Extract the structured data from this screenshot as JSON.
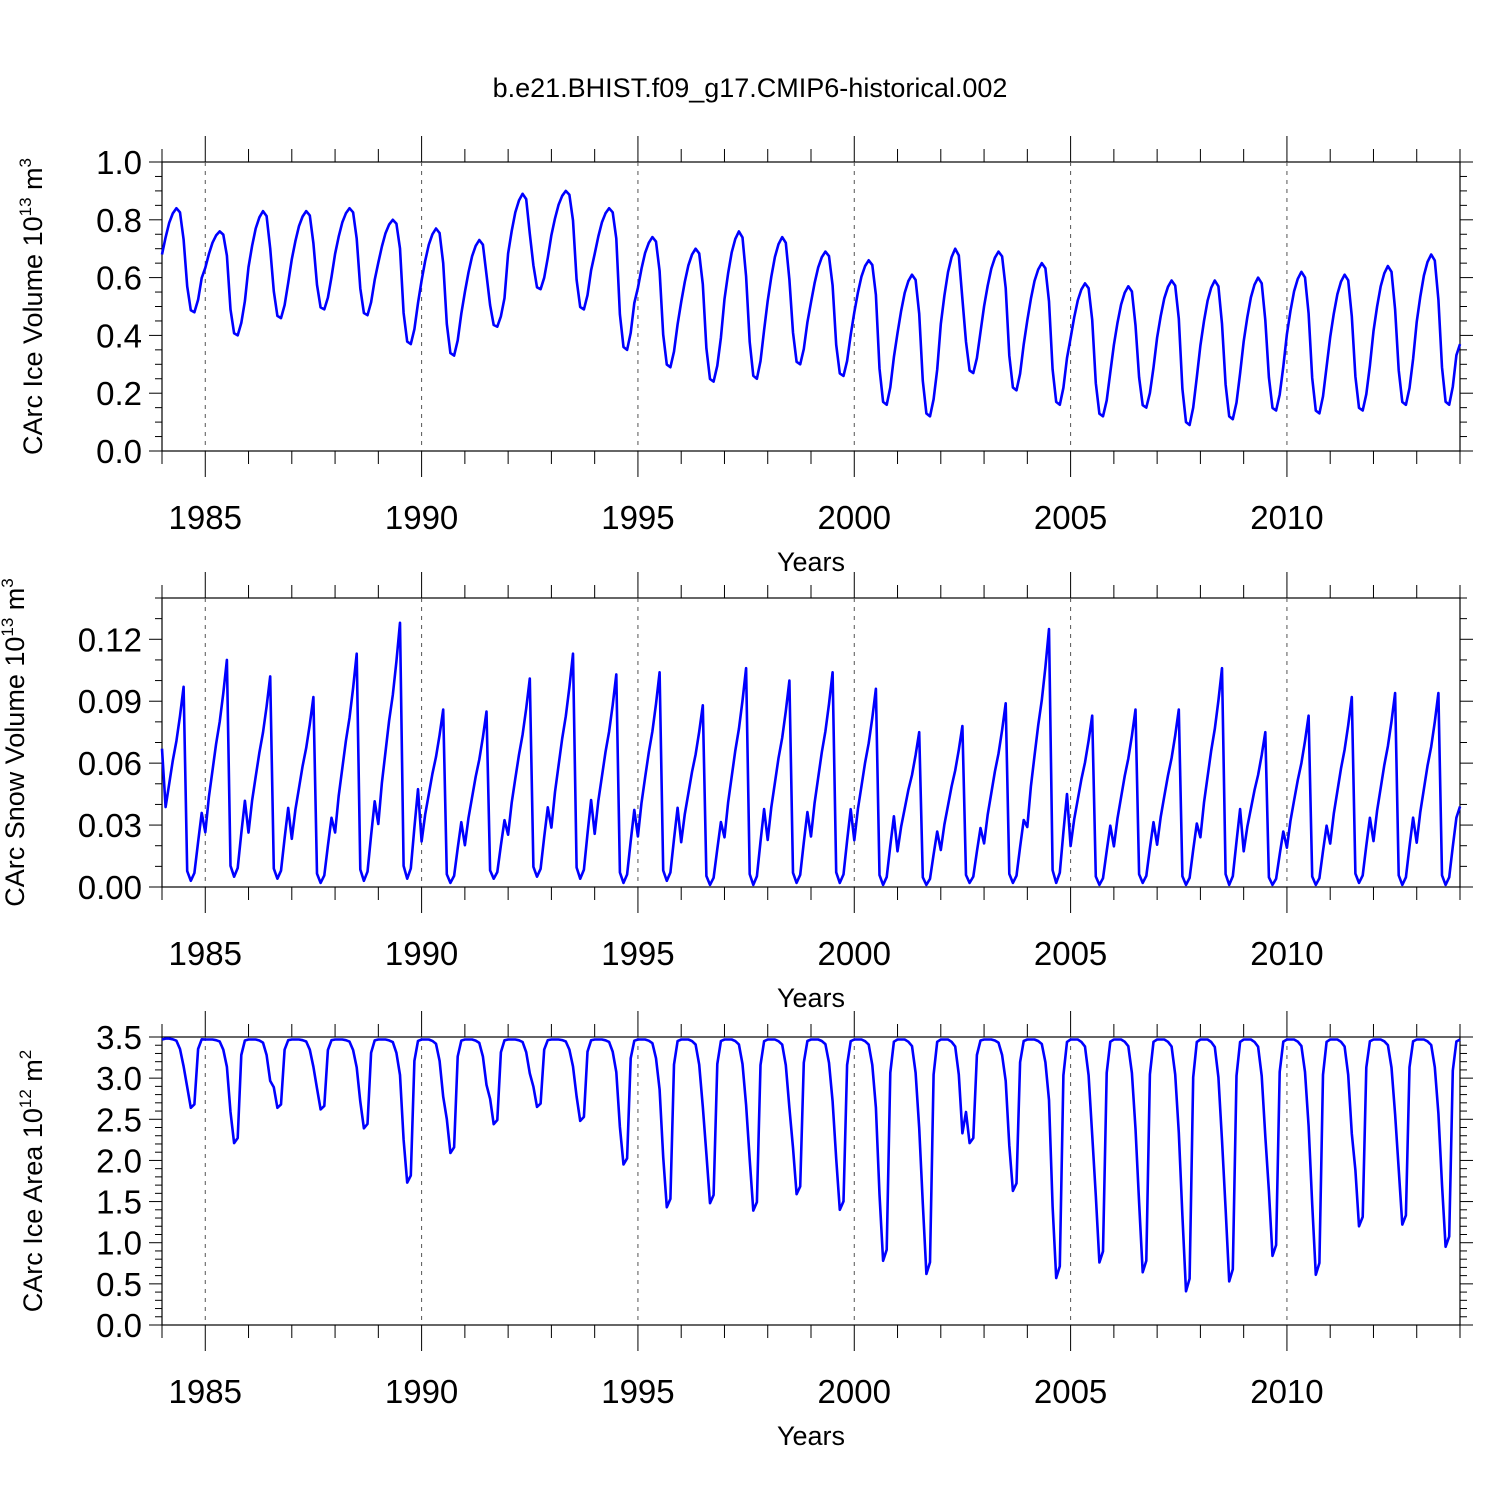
{
  "title": "b.e21.BHIST.f09_g17.CMIP6-historical.002",
  "line_color": "#0000ff",
  "chart_data": [
    {
      "type": "line",
      "ylabel": "CArc Ice Volume 10",
      "ylabel_sup": "13",
      "ylabel_unit": " m",
      "ylabel_unit_sup": "3",
      "xlabel": "Years",
      "xlim": [
        1984.0,
        2014.0
      ],
      "ylim": [
        0.0,
        1.0
      ],
      "yticks": [
        "0.0",
        "0.2",
        "0.4",
        "0.6",
        "0.8",
        "1.0"
      ],
      "yticks_values": [
        0.0,
        0.2,
        0.4,
        0.6,
        0.8,
        1.0
      ],
      "xticks": [
        "1985",
        "1990",
        "1995",
        "2000",
        "2005",
        "2010"
      ],
      "xticks_values": [
        1985,
        1990,
        1995,
        2000,
        2005,
        2010
      ],
      "series": [
        {
          "name": "CArc Ice Volume",
          "annual_max": [
            0.84,
            0.76,
            0.83,
            0.83,
            0.84,
            0.8,
            0.77,
            0.73,
            0.89,
            0.9,
            0.84,
            0.74,
            0.7,
            0.76,
            0.74,
            0.69,
            0.66,
            0.61,
            0.7,
            0.69,
            0.65,
            0.58,
            0.57,
            0.59,
            0.59,
            0.6,
            0.62,
            0.61,
            0.64,
            0.68
          ],
          "annual_min": [
            0.48,
            0.4,
            0.46,
            0.49,
            0.47,
            0.37,
            0.33,
            0.43,
            0.56,
            0.49,
            0.35,
            0.29,
            0.24,
            0.25,
            0.3,
            0.26,
            0.16,
            0.12,
            0.27,
            0.21,
            0.16,
            0.12,
            0.15,
            0.09,
            0.11,
            0.14,
            0.13,
            0.14,
            0.16,
            0.16
          ],
          "start_value": 0.68,
          "end_value": 0.37,
          "sampling": "monthly"
        }
      ]
    },
    {
      "type": "line",
      "ylabel": "CArc Snow Volume 10",
      "ylabel_sup": "13",
      "ylabel_unit": " m",
      "ylabel_unit_sup": "3",
      "xlabel": "Years",
      "xlim": [
        1984.0,
        2014.0
      ],
      "ylim": [
        0.0,
        0.14
      ],
      "yticks": [
        "0.00",
        "0.03",
        "0.06",
        "0.09",
        "0.12"
      ],
      "yticks_values": [
        0.0,
        0.03,
        0.06,
        0.09,
        0.12
      ],
      "xticks": [
        "1985",
        "1990",
        "1995",
        "2000",
        "2005",
        "2010"
      ],
      "xticks_values": [
        1985,
        1990,
        1995,
        2000,
        2005,
        2010
      ],
      "series": [
        {
          "name": "CArc Snow Volume",
          "annual_max": [
            0.097,
            0.11,
            0.102,
            0.092,
            0.113,
            0.128,
            0.086,
            0.085,
            0.101,
            0.113,
            0.103,
            0.104,
            0.088,
            0.106,
            0.1,
            0.104,
            0.096,
            0.075,
            0.078,
            0.089,
            0.125,
            0.083,
            0.086,
            0.086,
            0.106,
            0.075,
            0.083,
            0.092,
            0.094,
            0.094
          ],
          "annual_min": [
            0.003,
            0.005,
            0.004,
            0.002,
            0.003,
            0.004,
            0.002,
            0.004,
            0.005,
            0.004,
            0.002,
            0.003,
            0.001,
            0.001,
            0.002,
            0.002,
            0.001,
            0.001,
            0.002,
            0.002,
            0.002,
            0.001,
            0.002,
            0.001,
            0.001,
            0.001,
            0.001,
            0.002,
            0.001,
            0.001
          ],
          "start_value": 0.067,
          "end_value": 0.039,
          "sampling": "monthly"
        }
      ]
    },
    {
      "type": "line",
      "ylabel": "CArc Ice Area 10",
      "ylabel_sup": "12",
      "ylabel_unit": " m",
      "ylabel_unit_sup": "2",
      "xlabel": "Years",
      "xlim": [
        1984.0,
        2014.0
      ],
      "ylim": [
        0.0,
        3.5
      ],
      "yticks": [
        "0.0",
        "0.5",
        "1.0",
        "1.5",
        "2.0",
        "2.5",
        "3.0",
        "3.5"
      ],
      "yticks_values": [
        0.0,
        0.5,
        1.0,
        1.5,
        2.0,
        2.5,
        3.0,
        3.5
      ],
      "xticks": [
        "1985",
        "1990",
        "1995",
        "2000",
        "2005",
        "2010"
      ],
      "xticks_values": [
        1985,
        1990,
        1995,
        2000,
        2005,
        2010
      ],
      "series": [
        {
          "name": "CArc Ice Area",
          "annual_max": [
            3.48,
            3.47,
            3.47,
            3.47,
            3.47,
            3.47,
            3.47,
            3.47,
            3.47,
            3.47,
            3.47,
            3.47,
            3.47,
            3.47,
            3.47,
            3.47,
            3.47,
            3.47,
            3.47,
            3.47,
            3.47,
            3.47,
            3.47,
            3.47,
            3.47,
            3.47,
            3.47,
            3.47,
            3.47,
            3.47
          ],
          "annual_min": [
            2.64,
            2.21,
            2.64,
            2.62,
            2.39,
            1.73,
            2.09,
            2.44,
            2.65,
            2.48,
            1.95,
            1.43,
            1.48,
            1.39,
            1.59,
            1.4,
            0.78,
            0.62,
            2.21,
            1.63,
            0.57,
            0.76,
            0.64,
            0.41,
            0.53,
            0.84,
            0.61,
            1.2,
            1.22,
            0.95
          ],
          "start_value": 3.47,
          "end_value": 3.47,
          "sampling": "monthly"
        }
      ]
    }
  ]
}
